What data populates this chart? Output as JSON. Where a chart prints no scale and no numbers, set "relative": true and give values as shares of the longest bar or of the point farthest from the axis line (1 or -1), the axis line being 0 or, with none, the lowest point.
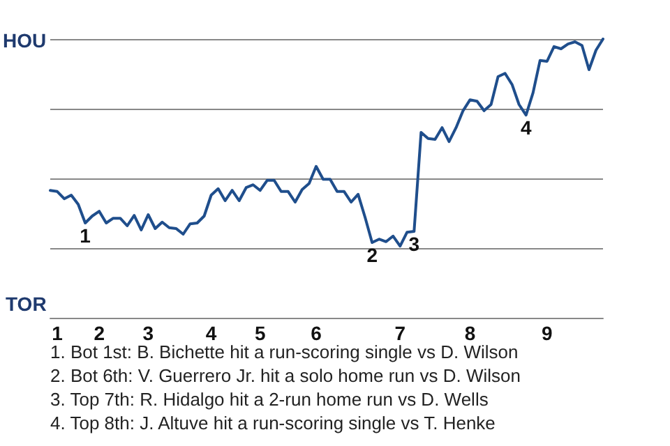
{
  "chart_data": {
    "type": "line",
    "relative": true,
    "categories": [
      null,
      "1",
      null,
      null,
      null,
      null,
      null,
      "2",
      null,
      null,
      null,
      null,
      null,
      null,
      "3",
      null,
      null,
      null,
      null,
      null,
      null,
      null,
      null,
      "4",
      null,
      null,
      null,
      null,
      null,
      null,
      "5",
      null,
      null,
      null,
      null,
      null,
      null,
      null,
      "6",
      null,
      null,
      null,
      null,
      null,
      null,
      null,
      null,
      null,
      null,
      null,
      "7",
      null,
      null,
      null,
      null,
      null,
      null,
      null,
      null,
      null,
      "8",
      null,
      null,
      null,
      null,
      null,
      null,
      null,
      null,
      null,
      null,
      "9",
      null,
      null,
      null,
      null,
      null,
      null,
      null,
      null
    ],
    "series": [
      {
        "color": "#1f4e8c",
        "values": [
          0.457,
          0.453,
          0.427,
          0.44,
          0.407,
          0.34,
          0.365,
          0.382,
          0.34,
          0.357,
          0.357,
          0.33,
          0.367,
          0.315,
          0.37,
          0.32,
          0.343,
          0.323,
          0.32,
          0.3,
          0.337,
          0.34,
          0.365,
          0.44,
          0.463,
          0.42,
          0.457,
          0.42,
          0.467,
          0.477,
          0.457,
          0.493,
          0.493,
          0.453,
          0.453,
          0.415,
          0.46,
          0.482,
          0.543,
          0.497,
          0.497,
          0.453,
          0.453,
          0.415,
          0.443,
          0.36,
          0.27,
          0.282,
          0.273,
          0.293,
          0.257,
          0.307,
          0.31,
          0.665,
          0.643,
          0.64,
          0.682,
          0.632,
          0.682,
          0.743,
          0.782,
          0.777,
          0.743,
          0.765,
          0.865,
          0.877,
          0.837,
          0.765,
          0.727,
          0.807,
          0.923,
          0.92,
          0.973,
          0.965,
          0.982,
          0.99,
          0.977,
          0.89,
          0.96,
          1.0
        ],
        "name": null
      }
    ],
    "grid": "y",
    "marker": "none",
    "line_style": "solid",
    "annotations": [
      "HOU",
      "TOR",
      {
        "text": "1",
        "y": 0.34
      },
      {
        "text": "2",
        "y": 0.27
      },
      {
        "text": "3",
        "y": 0.31
      },
      {
        "text": "4",
        "y": 0.727
      },
      "1. Bot 1st: B. Bichette hit a run-scoring single vs D. Wilson",
      "2. Bot 6th: V. Guerrero Jr. hit a solo home run vs D. Wilson",
      "3. Top 7th: R. Hidalgo hit a 2-run home run vs D. Wells",
      "4. Top 8th: J. Altuve hit a run-scoring single vs T. Henke"
    ]
  }
}
